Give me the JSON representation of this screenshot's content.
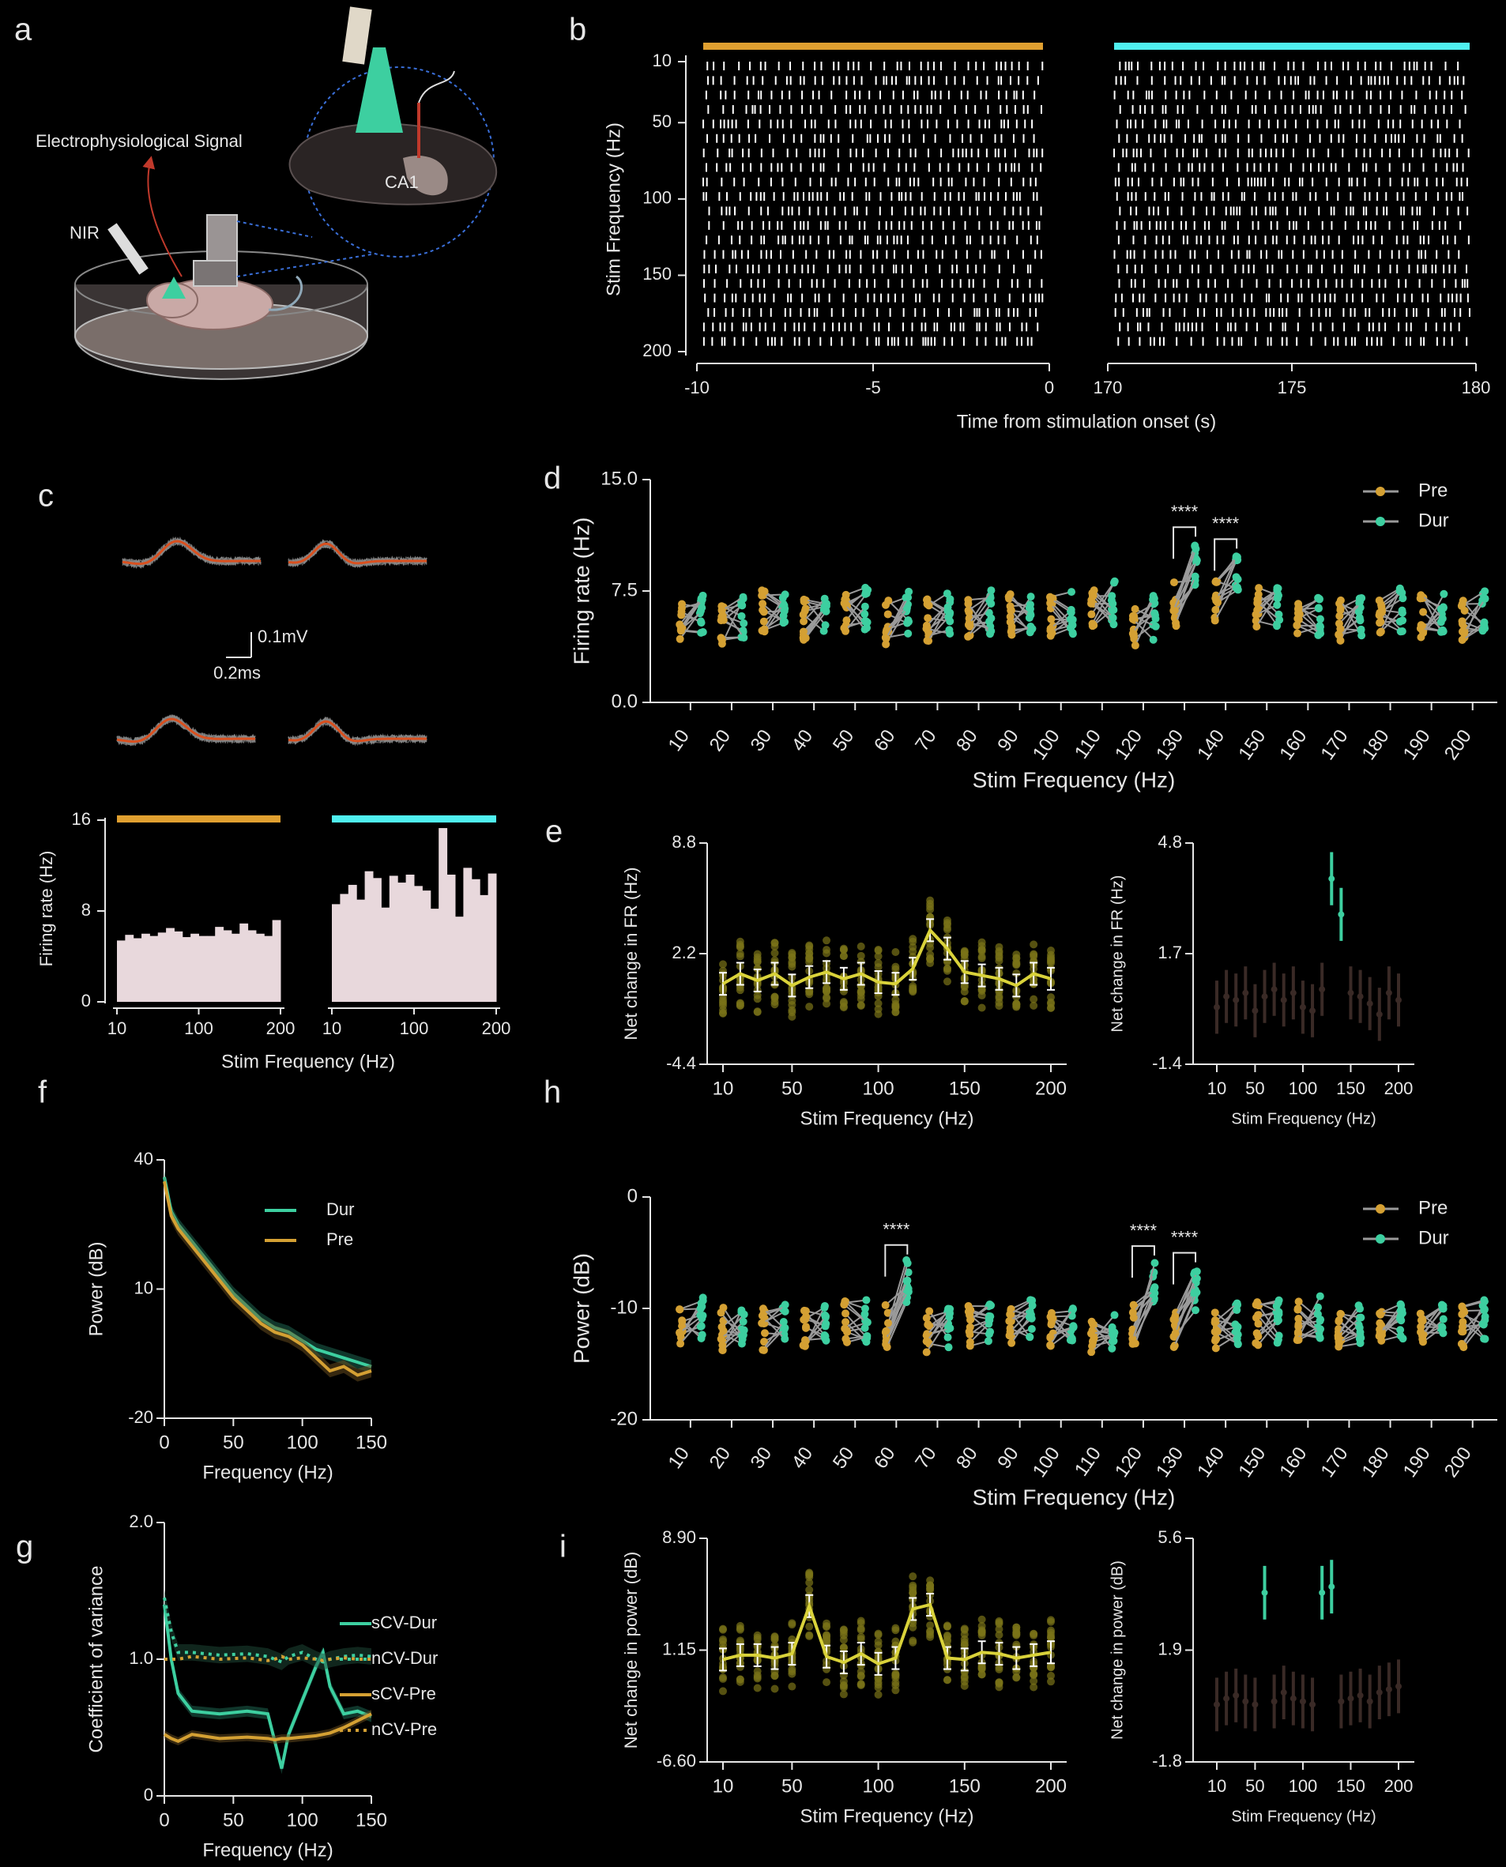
{
  "panel_labels": [
    "a",
    "b",
    "c",
    "d",
    "e",
    "f",
    "g",
    "h",
    "i"
  ],
  "colors": {
    "pre": "#d4a033",
    "dur": "#3dcfa0",
    "pre_bar": "#e0a030",
    "dur_bar": "#4ff0f0",
    "axis": "#e6e6e6",
    "yellow": "#d9d23a",
    "yellow_pts": "#7a7418",
    "brown": "#3a2a26",
    "hist": "#e8d8dc",
    "waveform_grey": "#8a8a8a",
    "waveform_red": "#d9501f",
    "pair_line": "#9a9a9a"
  },
  "panel_a": {
    "signal_label": "Electrophysiological Signal",
    "nir_label": "NIR",
    "region_label": "CA1"
  },
  "chart_data": [
    {
      "id": "b",
      "type": "raster",
      "ylabel": "Stim Frequency (Hz)",
      "xlabel": "Time from stimulation onset (s)",
      "yticks": [
        10,
        50,
        100,
        150,
        200
      ],
      "rows": 20,
      "pre_window": {
        "xlim": [
          -10,
          0
        ],
        "xticks": [
          "-10",
          "-5",
          "0"
        ]
      },
      "dur_window": {
        "xlim": [
          170,
          180
        ],
        "xticks": [
          "170",
          "175",
          "180"
        ]
      }
    },
    {
      "id": "c_waveforms",
      "type": "waveform",
      "scale_voltage": "0.1mV",
      "scale_time": "0.2ms",
      "units": 4
    },
    {
      "id": "c_hist",
      "type": "bar",
      "ylabel": "Firing rate (Hz)",
      "xlabel": "Stim Frequency (Hz)",
      "ylim": [
        0,
        16
      ],
      "yticks": [
        "0",
        "8",
        "16"
      ],
      "xticks": [
        "10",
        "100",
        "200"
      ],
      "pre_values": [
        5.4,
        5.9,
        5.6,
        6.0,
        5.8,
        6.1,
        6.5,
        6.2,
        5.7,
        6.0,
        5.8,
        5.8,
        6.6,
        6.3,
        6.0,
        6.9,
        6.3,
        6.0,
        5.8,
        7.2
      ],
      "dur_values": [
        8.6,
        9.5,
        10.3,
        9.0,
        11.5,
        10.9,
        8.3,
        11.1,
        10.5,
        11.2,
        10.2,
        9.8,
        8.2,
        15.3,
        11.2,
        7.5,
        11.8,
        10.8,
        9.4,
        11.3
      ]
    },
    {
      "id": "d",
      "type": "paired_scatter",
      "ylabel": "Firing rate (Hz)",
      "xlabel": "Stim Frequency (Hz)",
      "ylim": [
        0,
        15
      ],
      "yticks": [
        "0.0",
        "7.5",
        "15.0"
      ],
      "categories": [
        "10",
        "20",
        "30",
        "40",
        "50",
        "60",
        "70",
        "80",
        "90",
        "100",
        "110",
        "120",
        "130",
        "140",
        "150",
        "160",
        "170",
        "180",
        "190",
        "200"
      ],
      "pre_mean": [
        5.6,
        5.0,
        6.2,
        5.6,
        6.0,
        5.4,
        5.5,
        5.7,
        5.9,
        5.6,
        6.5,
        5.0,
        6.6,
        6.8,
        6.3,
        5.5,
        5.4,
        6.0,
        5.8,
        5.5
      ],
      "dur_mean": [
        6.1,
        5.8,
        6.3,
        6.2,
        6.4,
        6.0,
        5.9,
        6.1,
        6.2,
        6.0,
        6.7,
        5.7,
        9.4,
        8.6,
        6.4,
        5.7,
        5.6,
        6.2,
        6.0,
        6.3
      ],
      "significance": [
        {
          "category": "130",
          "label": "****"
        },
        {
          "category": "140",
          "label": "****"
        }
      ],
      "legend": [
        "Pre",
        "Dur"
      ],
      "legend_position": "top-right"
    },
    {
      "id": "e_left",
      "type": "line_with_points",
      "ylabel": "Net change in FR (Hz)",
      "xlabel": "Stim Frequency (Hz)",
      "ylim": [
        -4.4,
        8.8
      ],
      "yticks": [
        "-4.4",
        "2.2",
        "8.8"
      ],
      "xticks": [
        "10",
        "50",
        "100",
        "150",
        "200"
      ],
      "x": [
        10,
        20,
        30,
        40,
        50,
        60,
        70,
        80,
        90,
        100,
        110,
        120,
        130,
        140,
        150,
        160,
        170,
        180,
        190,
        200
      ],
      "y": [
        0.4,
        1.0,
        0.6,
        1.0,
        0.3,
        0.8,
        1.1,
        0.7,
        1.0,
        0.5,
        0.4,
        1.3,
        3.6,
        2.5,
        1.1,
        0.9,
        0.7,
        0.3,
        1.0,
        0.7
      ]
    },
    {
      "id": "e_right",
      "type": "errorbar",
      "ylabel": "Net change in FR (Hz)",
      "xlabel": "Stim Frequency (Hz)",
      "ylim": [
        -1.4,
        4.8
      ],
      "yticks": [
        "-1.4",
        "1.7",
        "4.8"
      ],
      "xticks": [
        "10",
        "50",
        "100",
        "150",
        "200"
      ],
      "x": [
        10,
        20,
        30,
        40,
        50,
        60,
        70,
        80,
        90,
        100,
        110,
        120,
        130,
        140,
        150,
        160,
        170,
        180,
        190,
        200
      ],
      "y": [
        0.2,
        0.5,
        0.4,
        0.6,
        0.1,
        0.5,
        0.7,
        0.4,
        0.6,
        0.2,
        0.1,
        0.7,
        3.8,
        2.8,
        0.6,
        0.5,
        0.3,
        0.0,
        0.6,
        0.4
      ],
      "highlight": [
        130,
        140
      ]
    },
    {
      "id": "f",
      "type": "line",
      "ylabel": "Power (dB)",
      "xlabel": "Frequency (Hz)",
      "ylim": [
        -20,
        40
      ],
      "yticks": [
        "-20",
        "10",
        "40"
      ],
      "xticks": [
        "0",
        "50",
        "100",
        "150"
      ],
      "x": [
        0,
        5,
        10,
        20,
        30,
        40,
        50,
        60,
        70,
        80,
        90,
        100,
        110,
        120,
        130,
        140,
        150
      ],
      "series": [
        {
          "name": "Dur",
          "values": [
            36,
            28,
            25,
            21,
            17,
            13,
            9,
            6,
            3,
            1,
            0,
            -2,
            -4,
            -5,
            -6,
            -7,
            -8
          ]
        },
        {
          "name": "Pre",
          "values": [
            35,
            27,
            24,
            20,
            16,
            12,
            8,
            5,
            2,
            0,
            -1,
            -3,
            -6,
            -9,
            -8,
            -10,
            -9
          ]
        }
      ],
      "legend_position": "top-right"
    },
    {
      "id": "g",
      "type": "line",
      "ylabel": "Coefficient of variance",
      "xlabel": "Frequency (Hz)",
      "ylim": [
        0,
        2
      ],
      "yticks": [
        "0",
        "1.0",
        "2.0"
      ],
      "xticks": [
        "0",
        "50",
        "100",
        "150"
      ],
      "x": [
        0,
        5,
        10,
        20,
        40,
        60,
        75,
        80,
        85,
        90,
        100,
        110,
        115,
        120,
        130,
        140,
        150
      ],
      "series": [
        {
          "name": "sCV-Dur",
          "values": [
            1.4,
            1.0,
            0.75,
            0.62,
            0.6,
            0.62,
            0.6,
            0.4,
            0.2,
            0.45,
            0.7,
            0.95,
            1.05,
            0.8,
            0.6,
            0.62,
            0.58
          ]
        },
        {
          "name": "nCV-Dur",
          "values": [
            1.45,
            1.2,
            1.05,
            1.05,
            1.03,
            1.04,
            1.02,
            1.0,
            0.98,
            1.02,
            1.05,
            1.0,
            0.98,
            1.0,
            1.02,
            1.03,
            1.02
          ]
        },
        {
          "name": "sCV-Pre",
          "values": [
            0.45,
            0.42,
            0.4,
            0.45,
            0.42,
            0.43,
            0.42,
            0.41,
            0.42,
            0.42,
            0.43,
            0.44,
            0.45,
            0.46,
            0.5,
            0.55,
            0.6
          ]
        },
        {
          "name": "nCV-Pre",
          "values": [
            1.0,
            1.0,
            1.0,
            1.02,
            1.0,
            1.01,
            0.99,
            1.0,
            1.02,
            1.0,
            1.01,
            1.0,
            0.99,
            1.0,
            1.01,
            1.0,
            1.0
          ]
        }
      ],
      "legend_position": "right"
    },
    {
      "id": "h",
      "type": "paired_scatter",
      "ylabel": "Power (dB)",
      "xlabel": "Stim Frequency (Hz)",
      "ylim": [
        -20,
        0
      ],
      "yticks": [
        "-20",
        "-10",
        "0"
      ],
      "categories": [
        "10",
        "20",
        "30",
        "40",
        "50",
        "60",
        "70",
        "80",
        "90",
        "100",
        "110",
        "120",
        "130",
        "140",
        "150",
        "160",
        "170",
        "180",
        "190",
        "200"
      ],
      "pre_mean": [
        -11.2,
        -11.8,
        -12.0,
        -11.5,
        -11.3,
        -11.5,
        -12.0,
        -11.6,
        -11.4,
        -11.8,
        -12.2,
        -11.3,
        -11.7,
        -11.6,
        -11.4,
        -11.0,
        -11.8,
        -11.5,
        -11.6,
        -11.7
      ],
      "dur_mean": [
        -11.0,
        -11.2,
        -11.4,
        -11.0,
        -11.2,
        -7.5,
        -11.6,
        -11.3,
        -11.2,
        -11.0,
        -11.6,
        -7.6,
        -8.2,
        -11.3,
        -11.1,
        -10.8,
        -11.2,
        -11.0,
        -11.3,
        -11.2
      ],
      "significance": [
        {
          "category": "60",
          "label": "****"
        },
        {
          "category": "120",
          "label": "****"
        },
        {
          "category": "130",
          "label": "****"
        }
      ],
      "legend": [
        "Pre",
        "Dur"
      ],
      "legend_position": "top-right"
    },
    {
      "id": "i_left",
      "type": "line_with_points",
      "ylabel": "Net change in power (dB)",
      "xlabel": "Stim Frequency (Hz)",
      "ylim": [
        -6.6,
        8.9
      ],
      "yticks": [
        "-6.60",
        "1.15",
        "8.90"
      ],
      "xticks": [
        "10",
        "50",
        "100",
        "150",
        "200"
      ],
      "x": [
        10,
        20,
        30,
        40,
        50,
        60,
        70,
        80,
        90,
        100,
        110,
        120,
        130,
        140,
        150,
        160,
        170,
        180,
        190,
        200
      ],
      "y": [
        0.5,
        0.8,
        0.8,
        0.6,
        0.9,
        4.2,
        0.7,
        0.3,
        0.9,
        0.2,
        0.6,
        4.0,
        4.3,
        0.6,
        0.5,
        1.0,
        0.9,
        0.6,
        0.8,
        1.0
      ]
    },
    {
      "id": "i_right",
      "type": "errorbar",
      "ylabel": "Net change in power (dB)",
      "xlabel": "Stim Frequency (Hz)",
      "ylim": [
        -1.8,
        5.6
      ],
      "yticks": [
        "-1.8",
        "1.9",
        "5.6"
      ],
      "xticks": [
        "10",
        "50",
        "100",
        "150",
        "200"
      ],
      "x": [
        10,
        20,
        30,
        40,
        50,
        60,
        70,
        80,
        90,
        100,
        110,
        120,
        130,
        140,
        150,
        160,
        170,
        180,
        190,
        200
      ],
      "y": [
        0.1,
        0.3,
        0.4,
        0.2,
        0.1,
        3.8,
        0.2,
        0.5,
        0.3,
        0.2,
        0.1,
        3.8,
        4.0,
        0.2,
        0.3,
        0.4,
        0.2,
        0.5,
        0.6,
        0.7
      ],
      "highlight": [
        60,
        120,
        130
      ]
    }
  ]
}
